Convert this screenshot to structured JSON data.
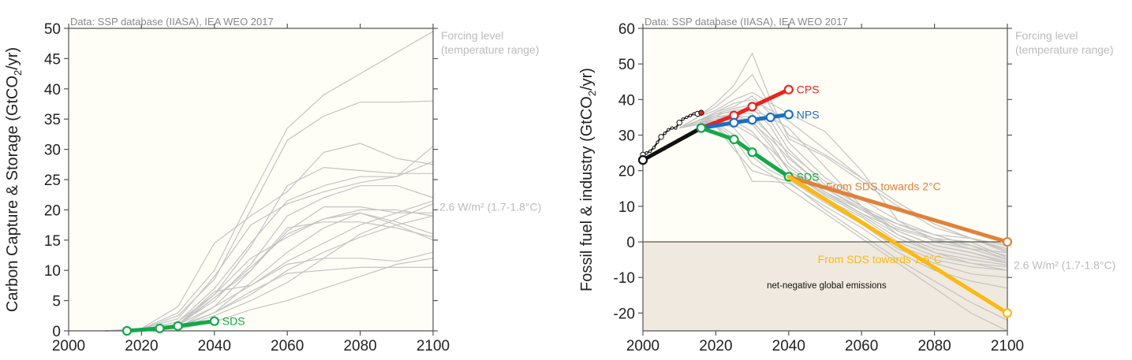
{
  "colors": {
    "plot_bg": "#fefdf6",
    "negative_bg": "#efe9df",
    "scenario_gray": "#c4c4c4",
    "history": "#111111",
    "history_latest": "#e8251f",
    "cps": "#e8251f",
    "nps": "#1b6fc1",
    "sds": "#14a84b",
    "towards_2c": "#e0823a",
    "towards_15c": "#fbb913",
    "note_gray": "#bbbbbb"
  },
  "chart_data": [
    {
      "id": "ccs",
      "type": "line",
      "source_note": "Data: SSP database (IIASA), IEA WEO 2017",
      "ylabel": "Carbon Capture & Storage (GtCO",
      "ylabel_sub": "2",
      "ylabel_tail": "/yr)",
      "xlabel": "",
      "xlim": [
        2000,
        2100
      ],
      "ylim": [
        0,
        50
      ],
      "xticks": [
        2000,
        2020,
        2040,
        2060,
        2080,
        2100
      ],
      "yticks": [
        0,
        5,
        10,
        15,
        20,
        25,
        30,
        35,
        40,
        45,
        50
      ],
      "side_notes": {
        "header_line1": "Forcing level",
        "header_line2": "(temperature range)",
        "level": "2.6 W/m² (1.7-1.8°C)",
        "level_value": 20.5
      },
      "scenario_x": [
        2010,
        2020,
        2030,
        2040,
        2050,
        2060,
        2070,
        2080,
        2090,
        2100
      ],
      "scenarios": [
        [
          0,
          0.3,
          3.0,
          10.0,
          22.0,
          33.5,
          39.0,
          42.5,
          46.0,
          49.5
        ],
        [
          0,
          0.3,
          2.5,
          8.5,
          20.0,
          31.5,
          35.5,
          37.8,
          37.8,
          38.0
        ],
        [
          0,
          0.2,
          1.5,
          6.0,
          14.0,
          24.0,
          27.0,
          26.5,
          26.0,
          26.0
        ],
        [
          0,
          0.4,
          4.0,
          14.5,
          19.0,
          23.0,
          29.5,
          31.0,
          28.5,
          27.5
        ],
        [
          0,
          0.2,
          1.5,
          7.0,
          14.5,
          21.5,
          24.0,
          25.5,
          25.5,
          30.5
        ],
        [
          0,
          0.3,
          2.0,
          9.0,
          17.5,
          21.0,
          23.0,
          24.5,
          25.5,
          28.0
        ],
        [
          0,
          0.2,
          1.0,
          5.0,
          11.0,
          19.0,
          22.0,
          24.0,
          24.0,
          22.0
        ],
        [
          0,
          0.2,
          1.0,
          4.0,
          10.0,
          16.5,
          20.5,
          20.5,
          19.5,
          19.5
        ],
        [
          0,
          0.1,
          0.8,
          5.5,
          10.5,
          16.0,
          18.5,
          20.0,
          20.0,
          19.0
        ],
        [
          0,
          0.2,
          1.0,
          6.0,
          12.0,
          15.5,
          18.5,
          19.5,
          18.0,
          16.0
        ],
        [
          0,
          0.1,
          1.0,
          5.5,
          10.0,
          17.0,
          18.0,
          18.0,
          17.0,
          15.5
        ],
        [
          0,
          0.1,
          0.8,
          3.0,
          8.0,
          13.0,
          17.0,
          19.5,
          17.5,
          15.0
        ],
        [
          0,
          0.1,
          1.0,
          6.5,
          7.5,
          11.5,
          14.5,
          17.5,
          19.5,
          21.5
        ],
        [
          0,
          0.1,
          0.6,
          3.0,
          6.0,
          10.0,
          13.0,
          15.5,
          17.5,
          19.0
        ],
        [
          0,
          0.1,
          0.5,
          4.0,
          7.5,
          11.0,
          12.0,
          12.0,
          11.5,
          13.0
        ],
        [
          0,
          0.1,
          0.5,
          3.0,
          6.5,
          9.5,
          10.0,
          10.5,
          10.5,
          10.5
        ],
        [
          0,
          0.1,
          0.3,
          1.5,
          3.5,
          5.0,
          7.0,
          9.0,
          11.0,
          12.0
        ],
        [
          0,
          0.1,
          0.4,
          2.5,
          5.0,
          8.0,
          12.0,
          16.0,
          18.5,
          21.0
        ]
      ],
      "series": [
        {
          "name": "SDS",
          "label": "SDS",
          "color_key": "sds",
          "x": [
            2016,
            2025,
            2030,
            2040
          ],
          "values": [
            0.0,
            0.4,
            0.8,
            1.6
          ]
        }
      ]
    },
    {
      "id": "fossil",
      "type": "line",
      "source_note": "Data: SSP database (IIASA), IEA WEO 2017",
      "ylabel": "Fossil fuel & industry (GtCO",
      "ylabel_sub": "2",
      "ylabel_tail": "/yr)",
      "xlabel": "",
      "xlim": [
        2000,
        2100
      ],
      "ylim": [
        -25,
        60
      ],
      "xticks": [
        2000,
        2020,
        2040,
        2060,
        2080,
        2100
      ],
      "yticks": [
        -20,
        -10,
        0,
        10,
        20,
        30,
        40,
        50,
        60
      ],
      "negative_region_label": "net-negative global emissions",
      "side_notes": {
        "header_line1": "Forcing level",
        "header_line2": "(temperature range)",
        "level": "2.6 W/m² (1.7-1.8°C)",
        "level_value": -6.5
      },
      "history": {
        "name": "Historical",
        "x": [
          2000,
          2001,
          2002,
          2003,
          2004,
          2005,
          2006,
          2007,
          2008,
          2009,
          2010,
          2011,
          2012,
          2013,
          2014,
          2015,
          2016
        ],
        "values": [
          24.5,
          25.0,
          25.5,
          26.5,
          28.0,
          29.5,
          30.5,
          31.5,
          32.0,
          32.0,
          33.5,
          34.5,
          35.0,
          35.5,
          36.0,
          36.0,
          36.3
        ]
      },
      "scenario_x": [
        2010,
        2015,
        2020,
        2025,
        2030,
        2035,
        2040,
        2050,
        2060,
        2070,
        2080,
        2090,
        2100
      ],
      "scenarios": [
        [
          32,
          35,
          39.0,
          44.0,
          53.0,
          40.0,
          29.0,
          24.0,
          17.0,
          10.0,
          4.0,
          1.0,
          -1.0
        ],
        [
          32,
          35,
          38.0,
          42.0,
          47.0,
          38.0,
          30.0,
          24.5,
          18.0,
          11.0,
          5.0,
          1.0,
          -2.0
        ],
        [
          32,
          35,
          37.0,
          40.0,
          42.0,
          39.0,
          36.0,
          31.0,
          20.0,
          6.0,
          0.0,
          -2.0,
          -3.0
        ],
        [
          32,
          34,
          36.5,
          38.0,
          41.0,
          36.0,
          28.0,
          18.0,
          12.0,
          6.0,
          2.0,
          -1.0,
          -4.0
        ],
        [
          32,
          34,
          36.0,
          37.5,
          38.5,
          34.0,
          26.0,
          16.0,
          10.0,
          5.0,
          1.0,
          -2.0,
          -5.0
        ],
        [
          32,
          34,
          35.5,
          37.0,
          37.5,
          32.5,
          24.0,
          15.0,
          9.0,
          3.0,
          -1.0,
          -3.0,
          -5.5
        ],
        [
          32,
          34,
          36.0,
          36.5,
          36.0,
          30.0,
          22.0,
          14.0,
          8.0,
          2.0,
          -2.0,
          -4.0,
          -6.0
        ],
        [
          32,
          33.5,
          35.0,
          35.5,
          34.0,
          28.0,
          20.0,
          13.0,
          7.5,
          1.0,
          -3.0,
          -5.0,
          -6.5
        ],
        [
          32,
          33.5,
          34.5,
          34.0,
          31.0,
          25.0,
          18.0,
          12.0,
          7.0,
          0.0,
          -4.0,
          -6.0,
          -7.0
        ],
        [
          32,
          33,
          34.0,
          32.0,
          26.0,
          22.0,
          19.0,
          12.5,
          6.0,
          -1.0,
          -5.0,
          -7.0,
          -8.0
        ],
        [
          32,
          33,
          33.5,
          30.0,
          24.0,
          20.0,
          17.5,
          11.0,
          5.0,
          -2.0,
          -6.0,
          -9.0,
          -10.0
        ],
        [
          32,
          33,
          33.0,
          27.0,
          17.0,
          17.0,
          16.5,
          10.0,
          4.0,
          -3.0,
          -8.0,
          -11.0,
          -13.0
        ],
        [
          32,
          33,
          32.5,
          26.0,
          20.0,
          18.5,
          17.0,
          9.0,
          2.0,
          -5.0,
          -11.0,
          -17.0,
          -22.0
        ],
        [
          32,
          33,
          33.0,
          29.0,
          22.0,
          19.0,
          15.0,
          8.0,
          1.0,
          -6.0,
          -13.0,
          -20.0,
          -27.0
        ],
        [
          32,
          34,
          35.0,
          36.0,
          37.0,
          35.0,
          32.0,
          21.0,
          10.0,
          3.0,
          -1.0,
          -3.0,
          -6.0
        ],
        [
          32,
          34,
          35.5,
          35.0,
          33.5,
          29.0,
          23.5,
          15.0,
          9.5,
          4.0,
          1.0,
          0.0,
          -4.5
        ],
        [
          32,
          33.5,
          34.0,
          33.0,
          30.0,
          26.0,
          21.0,
          14.0,
          9.0,
          5.0,
          2.0,
          1.0,
          -3.0
        ],
        [
          32,
          33.5,
          34.0,
          34.5,
          33.0,
          27.0,
          20.0,
          13.5,
          8.0,
          3.5,
          0.5,
          -1.0,
          -5.0
        ],
        [
          32,
          34,
          36.5,
          39.0,
          40.0,
          37.0,
          34.0,
          26.0,
          18.0,
          11.0,
          5.0,
          1.0,
          -2.5
        ],
        [
          32,
          33.5,
          34.5,
          35.5,
          35.0,
          30.0,
          25.0,
          17.0,
          10.0,
          2.0,
          -3.0,
          -6.0,
          -8.0
        ]
      ],
      "series": [
        {
          "name": "Historical trend",
          "label": "",
          "color_key": "history",
          "x": [
            2000,
            2016
          ],
          "values": [
            23.0,
            32.0
          ]
        },
        {
          "name": "CPS",
          "label": "CPS",
          "color_key": "cps",
          "x": [
            2016,
            2025,
            2030,
            2040
          ],
          "values": [
            32.0,
            35.5,
            38.0,
            42.8
          ]
        },
        {
          "name": "NPS",
          "label": "NPS",
          "color_key": "nps",
          "x": [
            2016,
            2025,
            2030,
            2035,
            2040
          ],
          "values": [
            32.0,
            33.5,
            34.3,
            35.0,
            35.8
          ]
        },
        {
          "name": "SDS",
          "label": "SDS",
          "color_key": "sds",
          "x": [
            2016,
            2025,
            2030,
            2040
          ],
          "values": [
            32.0,
            28.8,
            25.2,
            18.3
          ]
        },
        {
          "name": "From SDS towards 2°C",
          "label": "From SDS towards 2°C",
          "color_key": "towards_2c",
          "x": [
            2040,
            2100
          ],
          "values": [
            18.3,
            0.0
          ]
        },
        {
          "name": "From SDS towards 1.5°C",
          "label": "From SDS towards 1.5°C",
          "color_key": "towards_15c",
          "x": [
            2040,
            2100
          ],
          "values": [
            18.3,
            -20.0
          ]
        }
      ]
    }
  ]
}
